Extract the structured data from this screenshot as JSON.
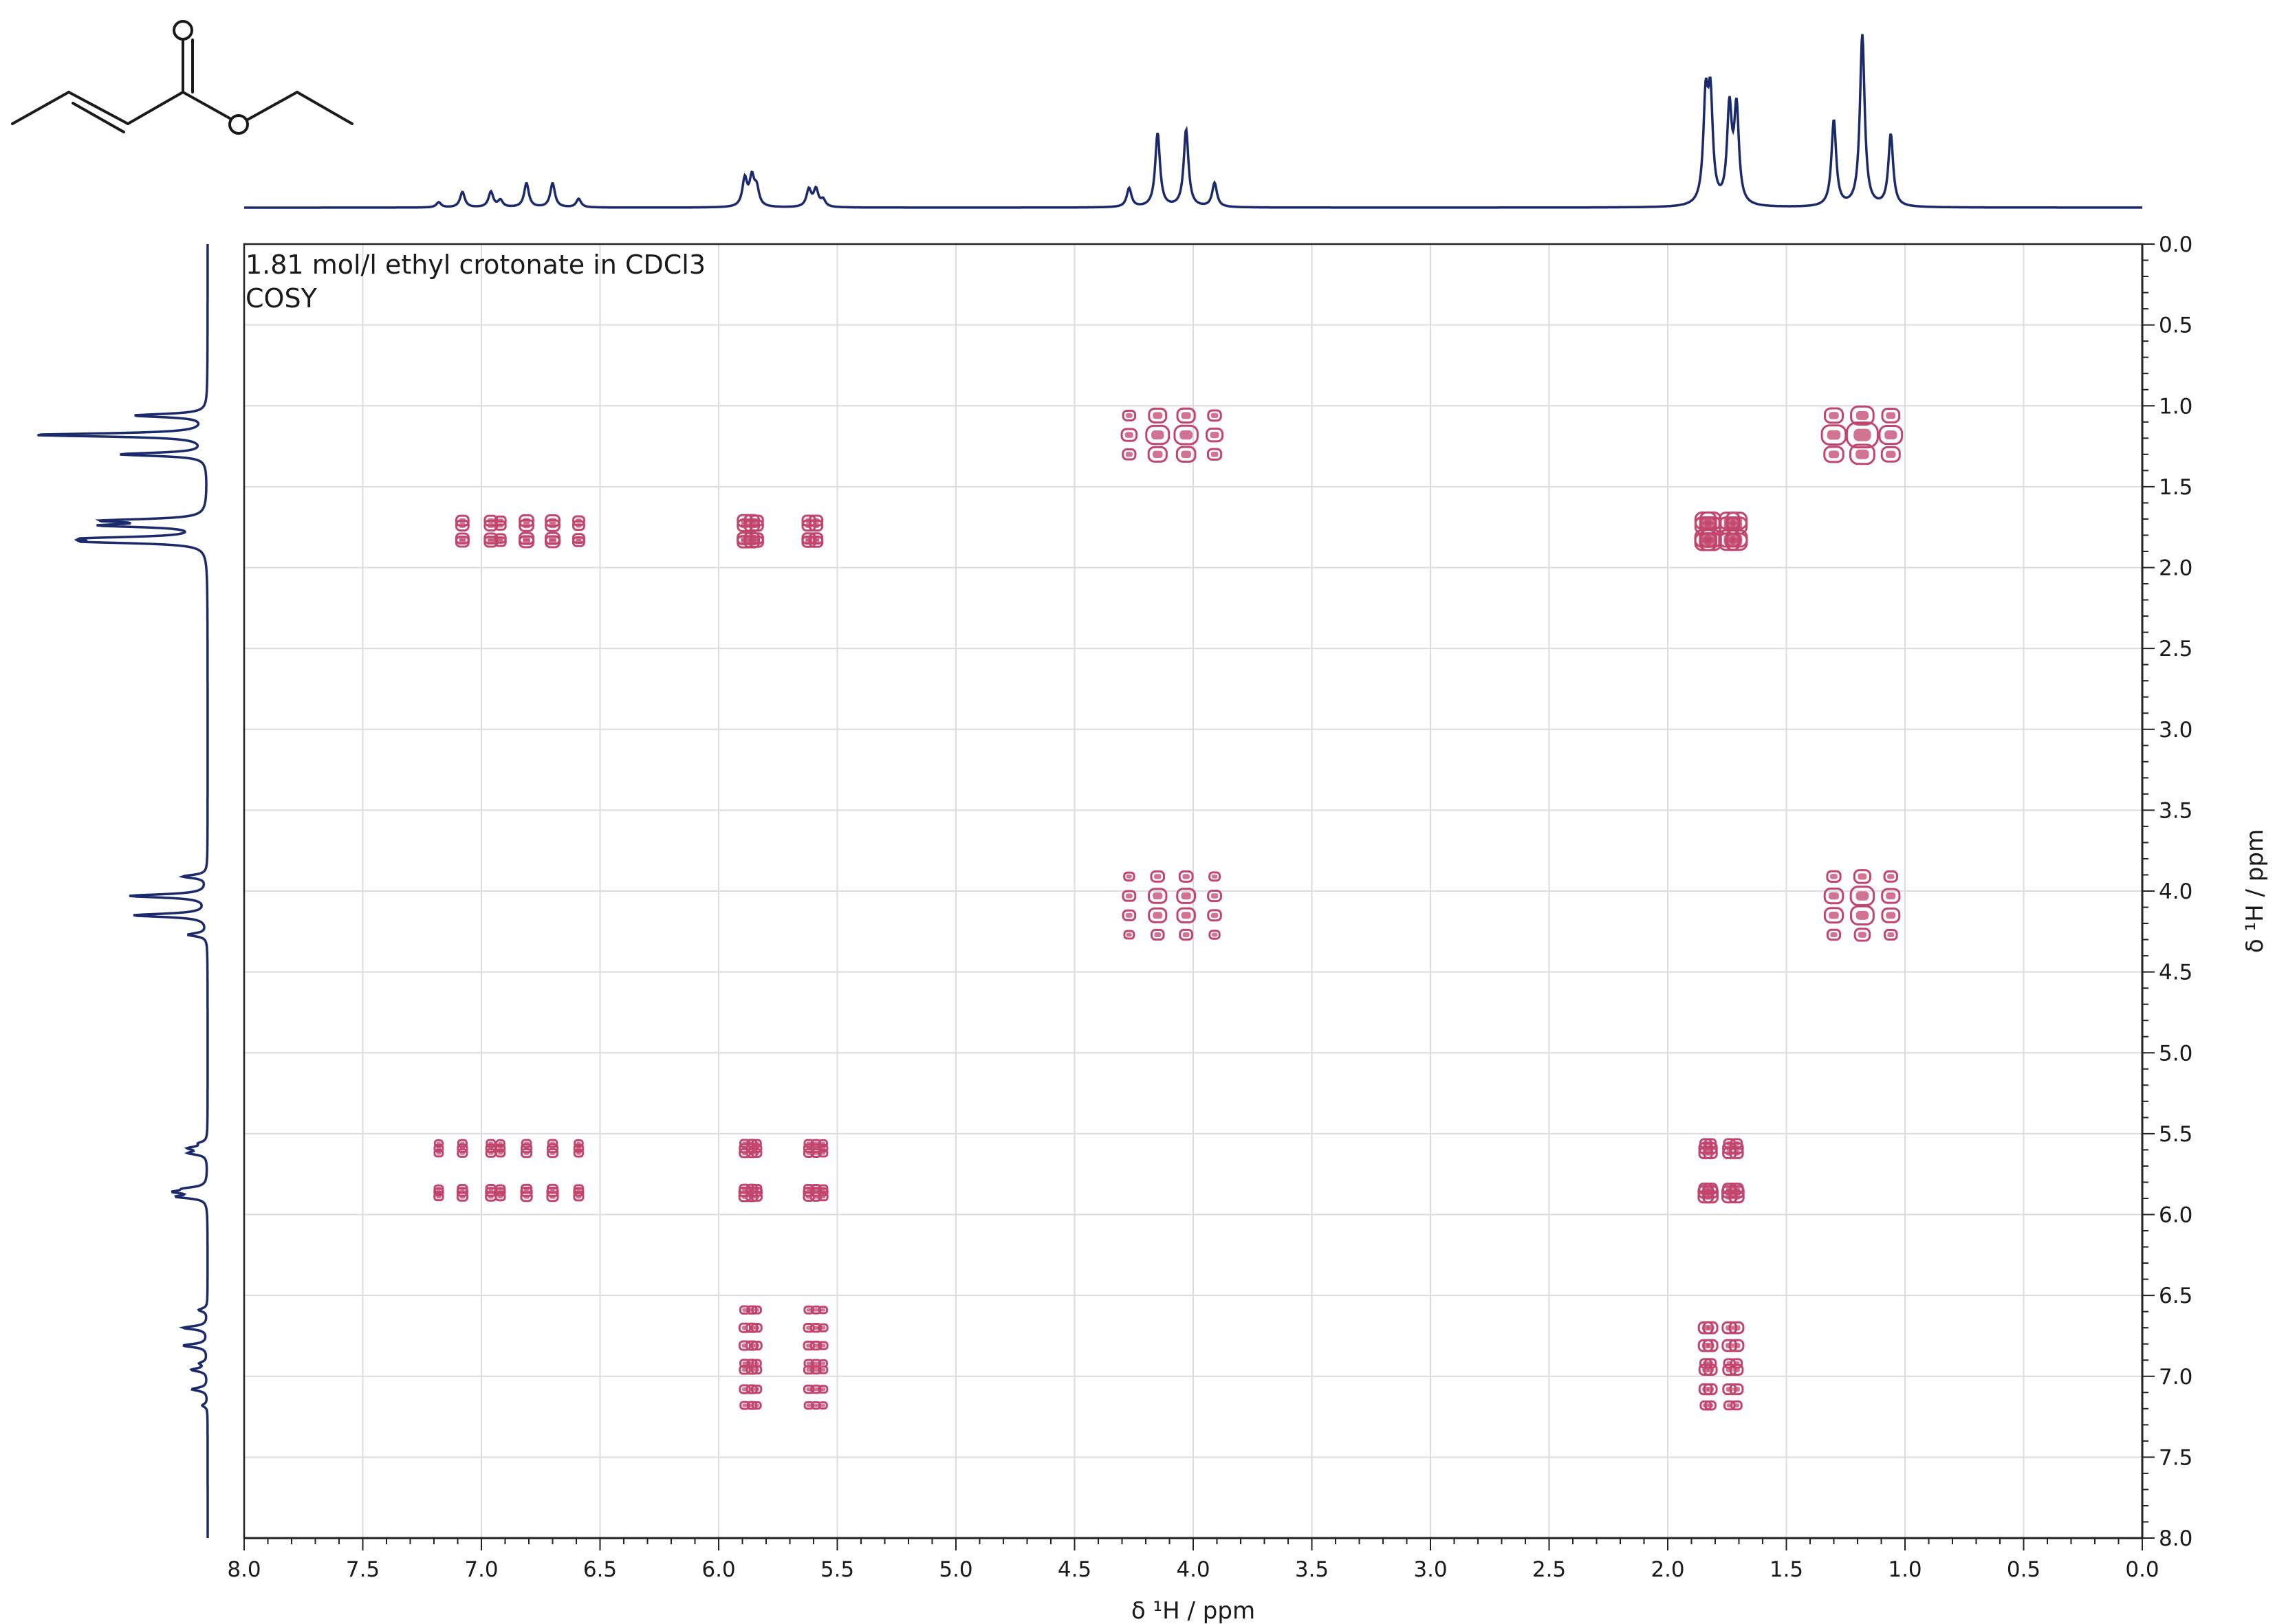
{
  "chart_data": {
    "type": "heatmap",
    "experiment": "COSY",
    "sample": "1.81 mol/l ethyl crotonate in CDCl3",
    "annotations": [
      "1.81 mol/l ethyl crotonate in CDCl3",
      "COSY"
    ],
    "xlabel": "δ ¹H / ppm",
    "ylabel": "δ ¹H / ppm",
    "xlim": [
      8.0,
      0.0
    ],
    "ylim": [
      0.0,
      8.0
    ],
    "x_ticks": [
      "8.0",
      "7.5",
      "7.0",
      "6.5",
      "6.0",
      "5.5",
      "5.0",
      "4.5",
      "4.0",
      "3.5",
      "3.0",
      "2.5",
      "2.0",
      "1.5",
      "1.0",
      "0.5",
      "0.0"
    ],
    "y_ticks": [
      "0.0",
      "0.5",
      "1.0",
      "1.5",
      "2.0",
      "2.5",
      "3.0",
      "3.5",
      "4.0",
      "4.5",
      "5.0",
      "5.5",
      "6.0",
      "6.5",
      "7.0",
      "7.5",
      "8.0"
    ],
    "grid": true,
    "colors": {
      "spectrum": "#1b2a6b",
      "contour": "#c2456d",
      "grid": "#dcdcdc",
      "axis": "#222222"
    },
    "projection_peaks": [
      {
        "ppm": 7.18,
        "height": 0.03
      },
      {
        "ppm": 7.08,
        "height": 0.09
      },
      {
        "ppm": 6.96,
        "height": 0.09
      },
      {
        "ppm": 6.92,
        "height": 0.04
      },
      {
        "ppm": 6.81,
        "height": 0.14
      },
      {
        "ppm": 6.7,
        "height": 0.14
      },
      {
        "ppm": 6.59,
        "height": 0.05
      },
      {
        "ppm": 5.89,
        "height": 0.16
      },
      {
        "ppm": 5.86,
        "height": 0.16
      },
      {
        "ppm": 5.84,
        "height": 0.1
      },
      {
        "ppm": 5.62,
        "height": 0.1
      },
      {
        "ppm": 5.59,
        "height": 0.1
      },
      {
        "ppm": 5.56,
        "height": 0.04
      },
      {
        "ppm": 4.27,
        "height": 0.11
      },
      {
        "ppm": 4.15,
        "height": 0.43
      },
      {
        "ppm": 4.03,
        "height": 0.45
      },
      {
        "ppm": 3.91,
        "height": 0.14
      },
      {
        "ppm": 1.84,
        "height": 0.58
      },
      {
        "ppm": 1.82,
        "height": 0.58
      },
      {
        "ppm": 1.74,
        "height": 0.55
      },
      {
        "ppm": 1.71,
        "height": 0.55
      },
      {
        "ppm": 1.3,
        "height": 0.5
      },
      {
        "ppm": 1.18,
        "height": 1.0
      },
      {
        "ppm": 1.06,
        "height": 0.42
      }
    ],
    "cross_peaks": [
      {
        "x": 4.03,
        "y": 1.18
      },
      {
        "x": 1.18,
        "y": 4.03
      },
      {
        "x": 6.81,
        "y": 1.78
      },
      {
        "x": 5.86,
        "y": 1.78
      },
      {
        "x": 1.78,
        "y": 5.74
      },
      {
        "x": 1.78,
        "y": 6.9
      },
      {
        "x": 6.88,
        "y": 5.74
      },
      {
        "x": 5.74,
        "y": 6.88
      }
    ],
    "diagonal_peaks": [
      {
        "x": 1.78,
        "y": 1.78
      },
      {
        "x": 1.18,
        "y": 1.18
      },
      {
        "x": 4.03,
        "y": 4.03
      },
      {
        "x": 5.74,
        "y": 5.74
      }
    ]
  }
}
